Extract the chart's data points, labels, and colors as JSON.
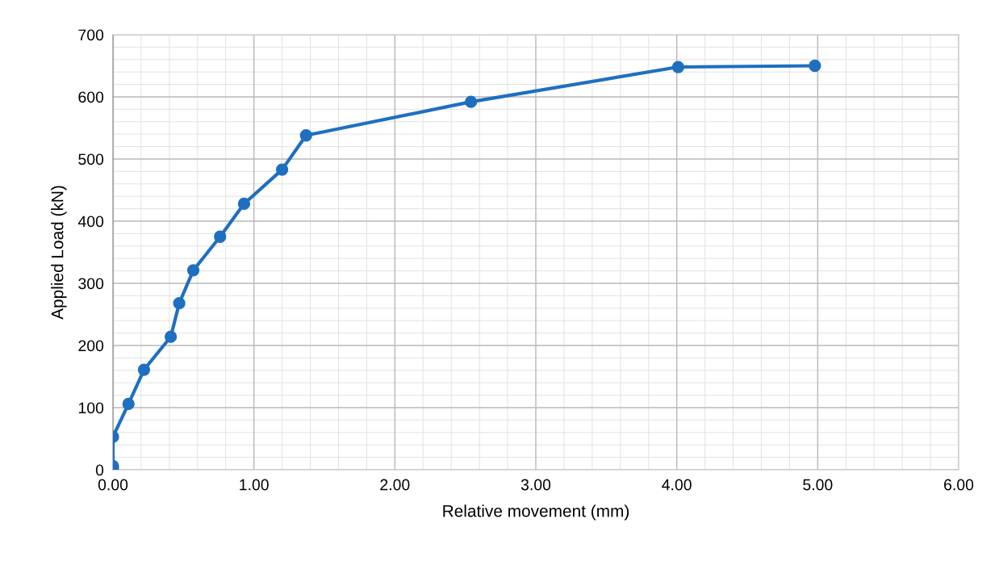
{
  "chart_data": {
    "type": "line",
    "xlabel": "Relative movement (mm)",
    "ylabel": "Applied Load (kN)",
    "x": [
      0,
      0,
      0,
      0.11,
      0.22,
      0.41,
      0.47,
      0.57,
      0.76,
      0.93,
      1.2,
      1.37,
      2.54,
      4.01,
      4.98
    ],
    "series": [
      {
        "color": "#1f6fc0",
        "values": [
          0,
          6,
          53,
          106,
          161,
          214,
          268,
          321,
          375,
          428,
          483,
          538,
          592,
          648,
          650
        ]
      }
    ],
    "xlim": [
      0,
      6
    ],
    "xticks": [
      {
        "value": 0,
        "label": "0.00"
      },
      {
        "value": 1,
        "label": "1.00"
      },
      {
        "value": 2,
        "label": "2.00"
      },
      {
        "value": 3,
        "label": "3.00"
      },
      {
        "value": 4,
        "label": "4.00"
      },
      {
        "value": 5,
        "label": "5.00"
      },
      {
        "value": 6,
        "label": "6.00"
      }
    ],
    "ylim": [
      0,
      700
    ],
    "yticks": [
      0,
      100,
      200,
      300,
      400,
      500,
      600,
      700
    ],
    "grid": true,
    "marker": "circle",
    "line_style": "solid",
    "legend": false
  }
}
